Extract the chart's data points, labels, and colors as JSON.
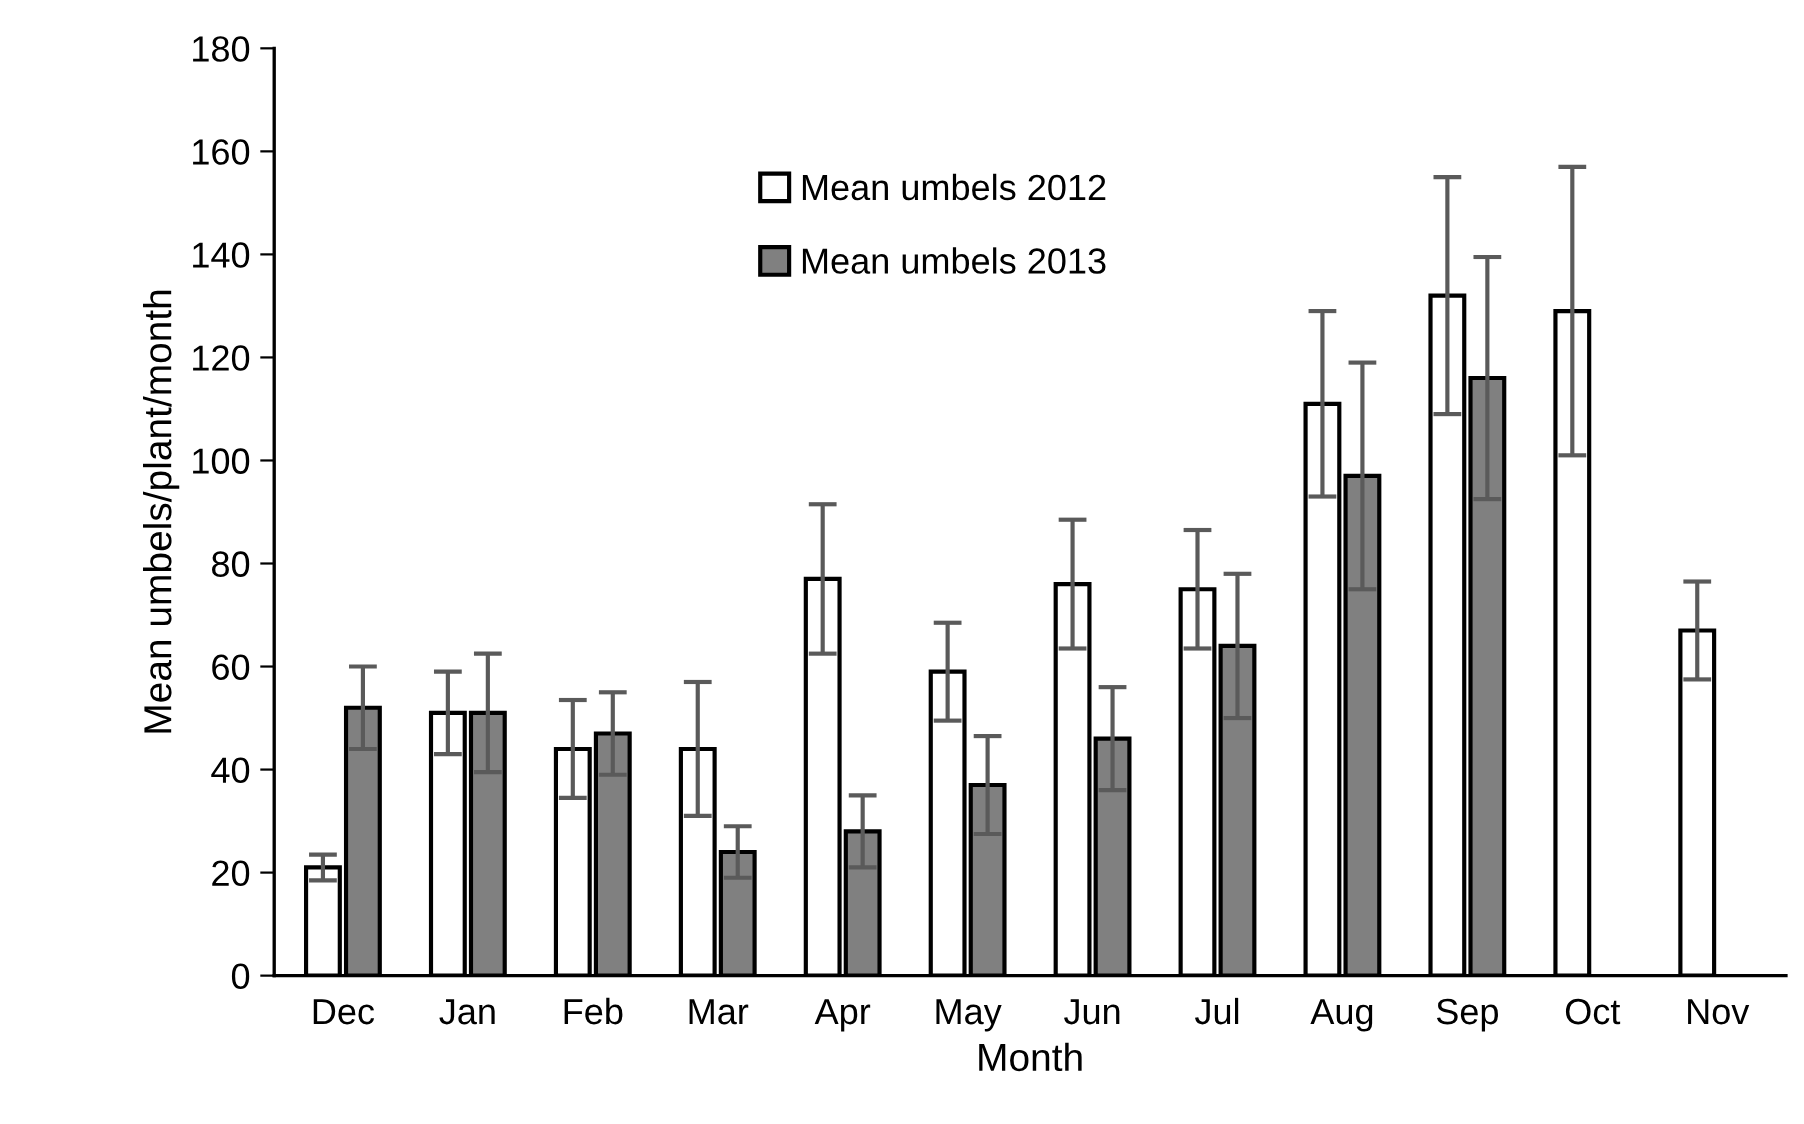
{
  "chart_data": {
    "type": "bar",
    "xlabel": "Month",
    "ylabel": "Mean umbels/plant/month",
    "categories": [
      "Dec",
      "Jan",
      "Feb",
      "Mar",
      "Apr",
      "May",
      "Jun",
      "Jul",
      "Aug",
      "Sep",
      "Oct",
      "Nov"
    ],
    "series": [
      {
        "name": "Mean umbels 2012",
        "color": "#ffffff",
        "values": [
          21,
          51,
          44,
          44,
          77,
          59,
          76,
          75,
          111,
          132,
          129,
          67
        ],
        "errors": [
          2.5,
          8,
          9.5,
          13,
          14.5,
          9.5,
          12.5,
          11.5,
          18,
          23,
          28,
          9.5
        ]
      },
      {
        "name": "Mean umbels 2013",
        "color": "#808080",
        "values": [
          52,
          51,
          47,
          24,
          28,
          37,
          46,
          64,
          97,
          116,
          null,
          null
        ],
        "errors": [
          8,
          11.5,
          8,
          5,
          7,
          9.5,
          10,
          14,
          22,
          23.5,
          null,
          null
        ]
      }
    ],
    "ylim": [
      0,
      180
    ],
    "yticks": [
      0,
      20,
      40,
      60,
      80,
      100,
      120,
      140,
      160,
      180
    ],
    "grid": false,
    "legend": "top left"
  }
}
